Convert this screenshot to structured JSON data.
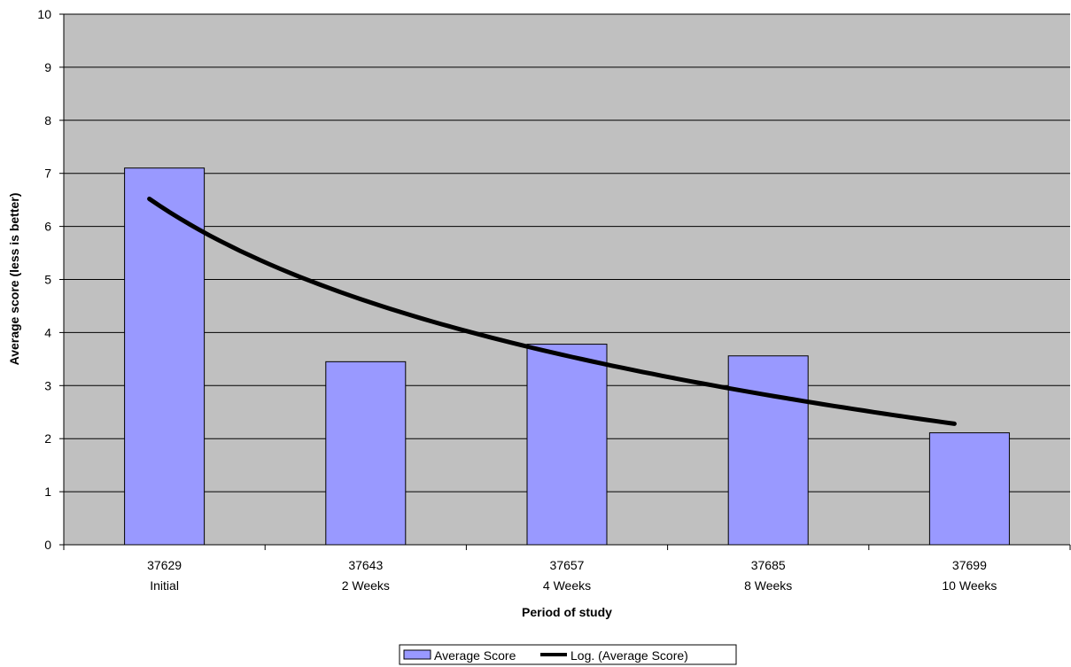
{
  "chart_data": {
    "type": "bar",
    "categories": [
      {
        "line1": "37629",
        "line2": "Initial"
      },
      {
        "line1": "37643",
        "line2": "2 Weeks"
      },
      {
        "line1": "37657",
        "line2": "4 Weeks"
      },
      {
        "line1": "37685",
        "line2": "8 Weeks"
      },
      {
        "line1": "37699",
        "line2": "10 Weeks"
      }
    ],
    "series": [
      {
        "name": "Average Score",
        "type": "bar",
        "values": [
          7.1,
          3.45,
          3.78,
          3.56,
          2.11
        ],
        "color": "#9999ff"
      }
    ],
    "trendline": {
      "name": "Log. (Average Score)",
      "type": "logarithmic",
      "values": [
        6.52,
        4.79,
        3.52,
        2.87,
        2.28
      ],
      "color": "#000000"
    },
    "xlabel": "Period of study",
    "ylabel": "Average score (less is better)",
    "ylim": [
      0,
      10
    ],
    "yticks": [
      "0",
      "1",
      "2",
      "3",
      "4",
      "5",
      "6",
      "7",
      "8",
      "9",
      "10"
    ],
    "grid": true,
    "plot_background": "#c0c0c0",
    "legend_position": "bottom"
  }
}
